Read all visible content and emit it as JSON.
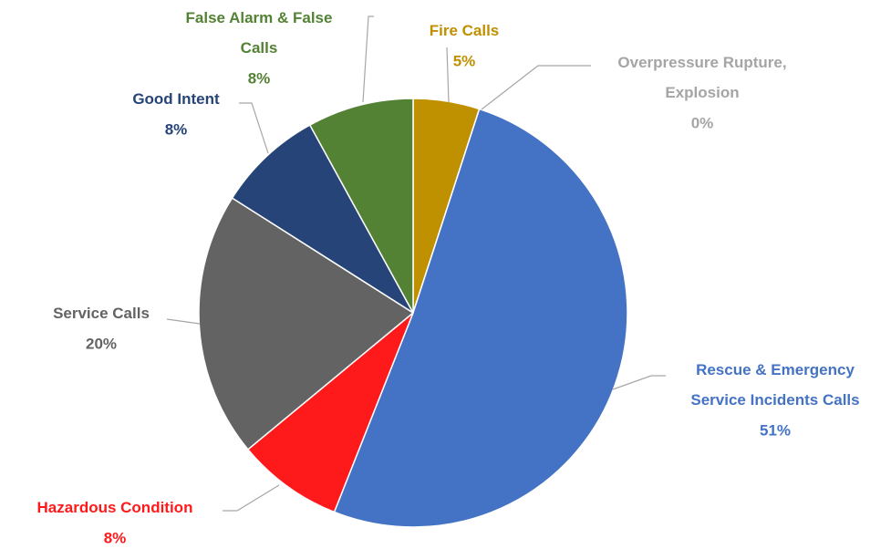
{
  "chart_data": {
    "type": "pie",
    "categories": [
      "Fire Calls",
      "Overpressure Rupture, Explosion",
      "Rescue & Emergency Service Incidents Calls",
      "Hazardous Condition",
      "Service Calls",
      "Good Intent",
      "False Alarm & False Calls"
    ],
    "values": [
      5,
      0,
      51,
      8,
      20,
      8,
      8
    ],
    "value_labels": [
      "5%",
      "0%",
      "51%",
      "8%",
      "20%",
      "8%",
      "8%"
    ],
    "colors": [
      "#bf9000",
      "#a5a5a5",
      "#4472c4",
      "#fe1a1a",
      "#636363",
      "#264478",
      "#548235"
    ]
  }
}
